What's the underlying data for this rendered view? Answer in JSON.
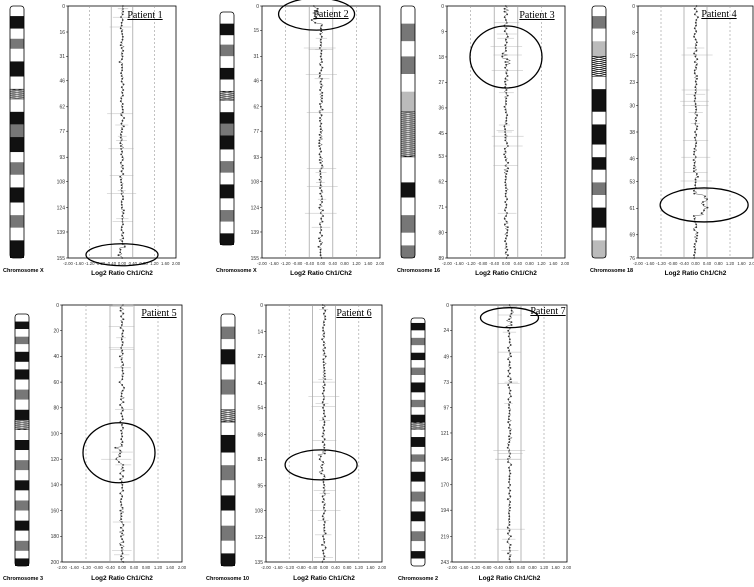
{
  "colors": {
    "ink": "#000000",
    "grid": "#999999",
    "data": "#555555",
    "band_dark": "#111111",
    "band_mid": "#777777",
    "band_light": "#bbbbbb"
  },
  "x_axis": {
    "title": "Log2 Ratio Ch1/Ch2",
    "ticks": [
      "-2.00",
      "-1.60",
      "-1.20",
      "-0.80",
      "-0.40",
      "0.00",
      "0.40",
      "0.80",
      "1.20",
      "1.60",
      "2.00"
    ],
    "dashed_lines": [
      -1.2,
      1.2
    ],
    "solid_lines": [
      -0.4,
      0.4
    ]
  },
  "chart_data": [
    {
      "type": "scatter",
      "panel": "Patient 1",
      "chromosome": "Chromosome X",
      "yticks": [
        "0",
        "16",
        "31",
        "46",
        "62",
        "77",
        "93",
        "108",
        "124",
        "139",
        "155"
      ],
      "xlabel": "Log2 Ratio Ch1/Ch2",
      "xlim": [
        -2,
        2
      ],
      "ylim": [
        0,
        155
      ],
      "highlight": {
        "y": 153,
        "x": 0.0,
        "note": "circled region"
      }
    },
    {
      "type": "scatter",
      "panel": "Patient 2",
      "chromosome": "Chromosome X",
      "yticks": [
        "0",
        "15",
        "31",
        "46",
        "62",
        "77",
        "93",
        "108",
        "124",
        "139",
        "155"
      ],
      "xlabel": "Log2 Ratio Ch1/Ch2",
      "xlim": [
        -2,
        2
      ],
      "ylim": [
        0,
        155
      ],
      "highlight": {
        "y": 5,
        "x": -0.15,
        "note": "circled region"
      }
    },
    {
      "type": "scatter",
      "panel": "Patient 3",
      "chromosome": "Chromosome 16",
      "yticks": [
        "0",
        "9",
        "18",
        "27",
        "36",
        "45",
        "53",
        "62",
        "71",
        "80",
        "89"
      ],
      "xlabel": "Log2 Ratio Ch1/Ch2",
      "xlim": [
        -2,
        2
      ],
      "ylim": [
        0,
        89
      ],
      "highlight": {
        "y": 18,
        "x": 0.0,
        "note": "circled region"
      }
    },
    {
      "type": "scatter",
      "panel": "Patient 4",
      "chromosome": "Chromosome 18",
      "yticks": [
        "0",
        "8",
        "15",
        "23",
        "30",
        "38",
        "46",
        "53",
        "61",
        "69",
        "76"
      ],
      "xlabel": "Log2 Ratio Ch1/Ch2",
      "xlim": [
        -2,
        2
      ],
      "ylim": [
        0,
        76
      ],
      "highlight": {
        "y": 60,
        "x": 0.3,
        "note": "circled region"
      }
    },
    {
      "type": "scatter",
      "panel": "Patient 5",
      "chromosome": "Chromosome 3",
      "yticks": [
        "0",
        "20",
        "40",
        "60",
        "80",
        "100",
        "120",
        "140",
        "160",
        "180",
        "200"
      ],
      "xlabel": "Log2 Ratio Ch1/Ch2",
      "xlim": [
        -2,
        2
      ],
      "ylim": [
        0,
        200
      ],
      "highlight": {
        "y": 115,
        "x": -0.1,
        "note": "circled region"
      }
    },
    {
      "type": "scatter",
      "panel": "Patient 6",
      "chromosome": "Chromosome 10",
      "yticks": [
        "0",
        "14",
        "27",
        "41",
        "54",
        "68",
        "81",
        "95",
        "108",
        "122",
        "135"
      ],
      "xlabel": "Log2 Ratio Ch1/Ch2",
      "xlim": [
        -2,
        2
      ],
      "ylim": [
        0,
        135
      ],
      "highlight": {
        "y": 84,
        "x": -0.1,
        "note": "circled region"
      }
    },
    {
      "type": "scatter",
      "panel": "Patient 7",
      "chromosome": "Chromosome 2",
      "yticks": [
        "0",
        "24",
        "49",
        "73",
        "97",
        "121",
        "146",
        "170",
        "194",
        "219",
        "243"
      ],
      "xlabel": "Log2 Ratio Ch1/Ch2",
      "xlim": [
        -2,
        2
      ],
      "ylim": [
        0,
        243
      ],
      "highlight": {
        "y": 12,
        "x": 0.0,
        "note": "circled region"
      }
    }
  ],
  "ideograms": [
    [
      [
        0,
        "w"
      ],
      [
        0.04,
        "k"
      ],
      [
        0.09,
        "w"
      ],
      [
        0.13,
        "m"
      ],
      [
        0.17,
        "w"
      ],
      [
        0.22,
        "k"
      ],
      [
        0.28,
        "w"
      ],
      [
        0.33,
        "c"
      ],
      [
        0.37,
        "w"
      ],
      [
        0.42,
        "k"
      ],
      [
        0.47,
        "m"
      ],
      [
        0.52,
        "k"
      ],
      [
        0.58,
        "w"
      ],
      [
        0.62,
        "m"
      ],
      [
        0.67,
        "w"
      ],
      [
        0.72,
        "k"
      ],
      [
        0.78,
        "w"
      ],
      [
        0.83,
        "m"
      ],
      [
        0.88,
        "w"
      ],
      [
        0.93,
        "k"
      ]
    ],
    [
      [
        0,
        "w"
      ],
      [
        0.05,
        "k"
      ],
      [
        0.1,
        "w"
      ],
      [
        0.14,
        "m"
      ],
      [
        0.19,
        "w"
      ],
      [
        0.24,
        "k"
      ],
      [
        0.29,
        "w"
      ],
      [
        0.34,
        "c"
      ],
      [
        0.38,
        "w"
      ],
      [
        0.43,
        "k"
      ],
      [
        0.48,
        "m"
      ],
      [
        0.53,
        "k"
      ],
      [
        0.59,
        "w"
      ],
      [
        0.64,
        "m"
      ],
      [
        0.69,
        "w"
      ],
      [
        0.74,
        "k"
      ],
      [
        0.8,
        "w"
      ],
      [
        0.85,
        "m"
      ],
      [
        0.9,
        "w"
      ],
      [
        0.95,
        "k"
      ]
    ],
    [
      [
        0,
        "w"
      ],
      [
        0.07,
        "m"
      ],
      [
        0.14,
        "w"
      ],
      [
        0.2,
        "m"
      ],
      [
        0.27,
        "w"
      ],
      [
        0.34,
        "l"
      ],
      [
        0.42,
        "c"
      ],
      [
        0.6,
        "w"
      ],
      [
        0.7,
        "k"
      ],
      [
        0.76,
        "w"
      ],
      [
        0.83,
        "m"
      ],
      [
        0.9,
        "w"
      ],
      [
        0.95,
        "m"
      ]
    ],
    [
      [
        0,
        "w"
      ],
      [
        0.04,
        "m"
      ],
      [
        0.09,
        "w"
      ],
      [
        0.14,
        "l"
      ],
      [
        0.2,
        "c"
      ],
      [
        0.28,
        "w"
      ],
      [
        0.33,
        "k"
      ],
      [
        0.42,
        "w"
      ],
      [
        0.47,
        "k"
      ],
      [
        0.55,
        "w"
      ],
      [
        0.6,
        "k"
      ],
      [
        0.65,
        "w"
      ],
      [
        0.7,
        "m"
      ],
      [
        0.75,
        "w"
      ],
      [
        0.8,
        "k"
      ],
      [
        0.88,
        "w"
      ],
      [
        0.93,
        "l"
      ]
    ],
    [
      [
        0,
        "w"
      ],
      [
        0.03,
        "k"
      ],
      [
        0.06,
        "w"
      ],
      [
        0.09,
        "m"
      ],
      [
        0.12,
        "w"
      ],
      [
        0.15,
        "k"
      ],
      [
        0.19,
        "w"
      ],
      [
        0.22,
        "k"
      ],
      [
        0.26,
        "w"
      ],
      [
        0.3,
        "m"
      ],
      [
        0.34,
        "w"
      ],
      [
        0.38,
        "k"
      ],
      [
        0.42,
        "c"
      ],
      [
        0.46,
        "w"
      ],
      [
        0.5,
        "k"
      ],
      [
        0.54,
        "w"
      ],
      [
        0.58,
        "m"
      ],
      [
        0.62,
        "w"
      ],
      [
        0.66,
        "k"
      ],
      [
        0.7,
        "w"
      ],
      [
        0.74,
        "m"
      ],
      [
        0.78,
        "w"
      ],
      [
        0.82,
        "k"
      ],
      [
        0.86,
        "w"
      ],
      [
        0.9,
        "m"
      ],
      [
        0.94,
        "w"
      ],
      [
        0.97,
        "k"
      ]
    ],
    [
      [
        0,
        "w"
      ],
      [
        0.05,
        "m"
      ],
      [
        0.1,
        "w"
      ],
      [
        0.14,
        "k"
      ],
      [
        0.2,
        "w"
      ],
      [
        0.26,
        "m"
      ],
      [
        0.32,
        "w"
      ],
      [
        0.38,
        "c"
      ],
      [
        0.43,
        "w"
      ],
      [
        0.48,
        "k"
      ],
      [
        0.55,
        "w"
      ],
      [
        0.6,
        "m"
      ],
      [
        0.66,
        "w"
      ],
      [
        0.72,
        "k"
      ],
      [
        0.78,
        "w"
      ],
      [
        0.84,
        "m"
      ],
      [
        0.9,
        "w"
      ],
      [
        0.95,
        "k"
      ]
    ],
    [
      [
        0,
        "w"
      ],
      [
        0.02,
        "k"
      ],
      [
        0.05,
        "w"
      ],
      [
        0.08,
        "m"
      ],
      [
        0.11,
        "w"
      ],
      [
        0.14,
        "k"
      ],
      [
        0.17,
        "w"
      ],
      [
        0.2,
        "m"
      ],
      [
        0.23,
        "w"
      ],
      [
        0.26,
        "k"
      ],
      [
        0.3,
        "w"
      ],
      [
        0.33,
        "m"
      ],
      [
        0.36,
        "w"
      ],
      [
        0.39,
        "k"
      ],
      [
        0.42,
        "c"
      ],
      [
        0.45,
        "w"
      ],
      [
        0.48,
        "k"
      ],
      [
        0.52,
        "w"
      ],
      [
        0.55,
        "m"
      ],
      [
        0.58,
        "w"
      ],
      [
        0.62,
        "k"
      ],
      [
        0.66,
        "w"
      ],
      [
        0.7,
        "m"
      ],
      [
        0.74,
        "w"
      ],
      [
        0.78,
        "k"
      ],
      [
        0.82,
        "w"
      ],
      [
        0.86,
        "m"
      ],
      [
        0.9,
        "w"
      ],
      [
        0.94,
        "k"
      ],
      [
        0.97,
        "w"
      ]
    ]
  ]
}
